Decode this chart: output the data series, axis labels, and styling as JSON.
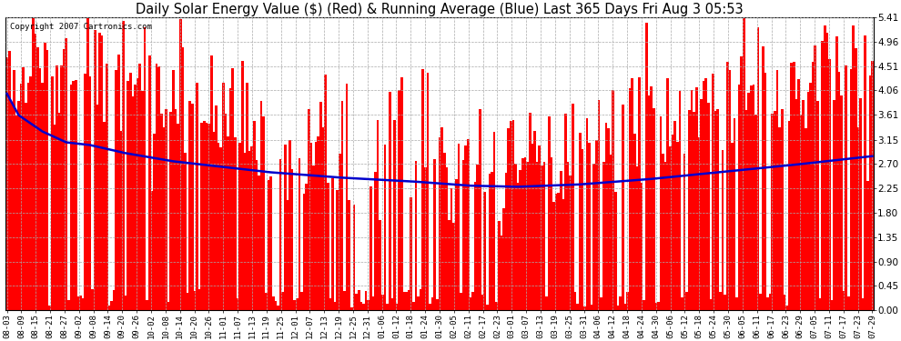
{
  "title": "Daily Solar Energy Value ($) (Red) & Running Average (Blue) Last 365 Days Fri Aug 3 05:53",
  "copyright": "Copyright 2007 Cartronics.com",
  "yticks": [
    0.0,
    0.45,
    0.9,
    1.35,
    1.8,
    2.25,
    2.7,
    3.15,
    3.61,
    4.06,
    4.51,
    4.96,
    5.41
  ],
  "ylim": [
    0.0,
    5.41
  ],
  "bar_color": "#ff0000",
  "avg_color": "#0000cc",
  "bg_color": "#ffffff",
  "grid_color": "#aaaaaa",
  "title_fontsize": 10.5,
  "copyright_fontsize": 6.5,
  "xtick_fontsize": 6.5,
  "ytick_fontsize": 7.5,
  "x_labels": [
    "08-03",
    "08-09",
    "08-15",
    "08-21",
    "08-27",
    "09-02",
    "09-08",
    "09-14",
    "09-20",
    "09-26",
    "10-02",
    "10-08",
    "10-14",
    "10-20",
    "10-26",
    "11-01",
    "11-07",
    "11-13",
    "11-19",
    "11-25",
    "12-01",
    "12-07",
    "12-13",
    "12-19",
    "12-25",
    "12-31",
    "01-06",
    "01-12",
    "01-18",
    "01-24",
    "01-30",
    "02-05",
    "02-11",
    "02-17",
    "02-23",
    "03-01",
    "03-07",
    "03-13",
    "03-19",
    "03-25",
    "03-31",
    "04-06",
    "04-12",
    "04-18",
    "04-24",
    "04-30",
    "05-06",
    "05-12",
    "05-18",
    "05-24",
    "05-30",
    "06-05",
    "06-11",
    "06-17",
    "06-23",
    "06-29",
    "07-05",
    "07-11",
    "07-17",
    "07-23",
    "07-29"
  ]
}
